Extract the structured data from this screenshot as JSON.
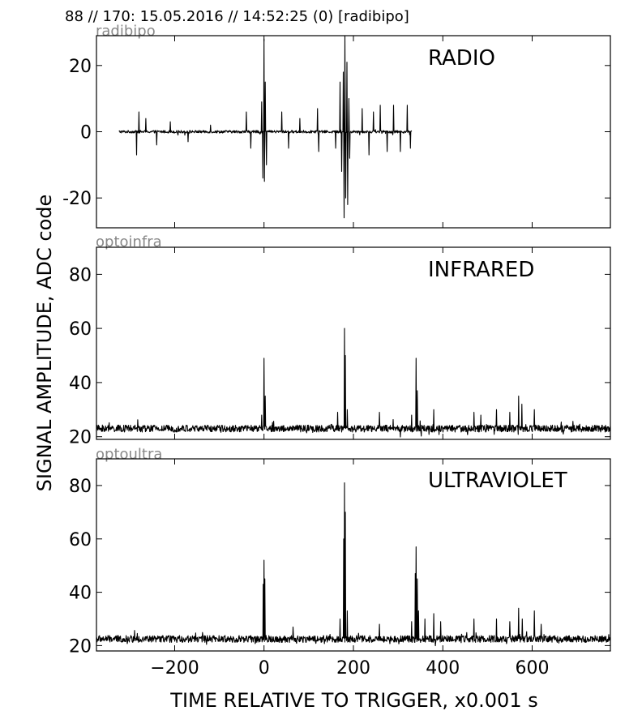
{
  "header": "88 // 170:   15.05.2016 // 14:52:25 (0)  [radibipo]",
  "xlabel": "TIME RELATIVE TO TRIGGER,   x0.001 s",
  "ylabel": "SIGNAL AMPLITUDE,  ADC code",
  "chart_data": [
    {
      "type": "line",
      "id": "radio",
      "tag": "radibipo",
      "title": "RADIO",
      "xlim": [
        -375,
        775
      ],
      "ylim": [
        -29,
        29
      ],
      "xticks": [
        -200,
        0,
        200,
        400,
        600
      ],
      "yticks": [
        -20,
        0,
        20
      ],
      "ytick_labels": [
        "-20",
        "0",
        "20"
      ],
      "x_range": [
        -325,
        330
      ],
      "baseline": 0,
      "noise": 0.4,
      "spikes": [
        {
          "x": -280,
          "y": 6
        },
        {
          "x": -285,
          "y": -7
        },
        {
          "x": -265,
          "y": 4
        },
        {
          "x": -240,
          "y": -4
        },
        {
          "x": -210,
          "y": 3
        },
        {
          "x": -170,
          "y": -3
        },
        {
          "x": -120,
          "y": 2
        },
        {
          "x": -40,
          "y": 6
        },
        {
          "x": -30,
          "y": -5
        },
        {
          "x": -5,
          "y": 9
        },
        {
          "x": -3,
          "y": -14
        },
        {
          "x": 0,
          "y": 28
        },
        {
          "x": 1,
          "y": -15
        },
        {
          "x": 3,
          "y": 15
        },
        {
          "x": 5,
          "y": -10
        },
        {
          "x": 40,
          "y": 6
        },
        {
          "x": 55,
          "y": -5
        },
        {
          "x": 80,
          "y": 4
        },
        {
          "x": 120,
          "y": 7
        },
        {
          "x": 122,
          "y": -6
        },
        {
          "x": 160,
          "y": -5
        },
        {
          "x": 170,
          "y": 15
        },
        {
          "x": 174,
          "y": -12
        },
        {
          "x": 177,
          "y": 18
        },
        {
          "x": 179,
          "y": -26
        },
        {
          "x": 181,
          "y": 29
        },
        {
          "x": 183,
          "y": -20
        },
        {
          "x": 185,
          "y": 21
        },
        {
          "x": 187,
          "y": -22
        },
        {
          "x": 190,
          "y": 10
        },
        {
          "x": 192,
          "y": -8
        },
        {
          "x": 220,
          "y": 7
        },
        {
          "x": 235,
          "y": -7
        },
        {
          "x": 245,
          "y": 6
        },
        {
          "x": 260,
          "y": 8
        },
        {
          "x": 275,
          "y": -6
        },
        {
          "x": 290,
          "y": 8
        },
        {
          "x": 305,
          "y": -6
        },
        {
          "x": 320,
          "y": 8
        },
        {
          "x": 328,
          "y": -5
        }
      ]
    },
    {
      "type": "line",
      "id": "infrared",
      "tag": "optoinfra",
      "title": "INFRARED",
      "xlim": [
        -375,
        775
      ],
      "ylim": [
        19,
        90
      ],
      "xticks": [
        -200,
        0,
        200,
        400,
        600
      ],
      "yticks": [
        20,
        40,
        60,
        80
      ],
      "ytick_labels": [
        "20",
        "40",
        "60",
        "80"
      ],
      "x_range": [
        -375,
        775
      ],
      "baseline": 23,
      "noise": 1.3,
      "spikes": [
        {
          "x": 0,
          "y": 49
        },
        {
          "x": -5,
          "y": 28
        },
        {
          "x": 3,
          "y": 35
        },
        {
          "x": 165,
          "y": 29
        },
        {
          "x": 180,
          "y": 60
        },
        {
          "x": 182,
          "y": 50
        },
        {
          "x": 186,
          "y": 30
        },
        {
          "x": 258,
          "y": 29
        },
        {
          "x": 330,
          "y": 28
        },
        {
          "x": 340,
          "y": 49
        },
        {
          "x": 343,
          "y": 37
        },
        {
          "x": 380,
          "y": 30
        },
        {
          "x": 470,
          "y": 29
        },
        {
          "x": 485,
          "y": 28
        },
        {
          "x": 520,
          "y": 30
        },
        {
          "x": 550,
          "y": 29
        },
        {
          "x": 570,
          "y": 35
        },
        {
          "x": 577,
          "y": 32
        },
        {
          "x": 605,
          "y": 30
        }
      ]
    },
    {
      "type": "line",
      "id": "ultraviolet",
      "tag": "optoultra",
      "title": "ULTRAVIOLET",
      "xlim": [
        -375,
        775
      ],
      "ylim": [
        18,
        90
      ],
      "xticks": [
        -200,
        0,
        200,
        400,
        600
      ],
      "xtick_labels": [
        "−200",
        "0",
        "200",
        "400",
        "600"
      ],
      "yticks": [
        20,
        40,
        60,
        80
      ],
      "ytick_labels": [
        "20",
        "40",
        "60",
        "80"
      ],
      "x_range": [
        -375,
        775
      ],
      "baseline": 22.5,
      "noise": 1.3,
      "spikes": [
        {
          "x": -2,
          "y": 43
        },
        {
          "x": 0,
          "y": 52
        },
        {
          "x": 2,
          "y": 45
        },
        {
          "x": 65,
          "y": 27
        },
        {
          "x": 170,
          "y": 30
        },
        {
          "x": 178,
          "y": 60
        },
        {
          "x": 180,
          "y": 81
        },
        {
          "x": 182,
          "y": 70
        },
        {
          "x": 186,
          "y": 33
        },
        {
          "x": 258,
          "y": 28
        },
        {
          "x": 330,
          "y": 29
        },
        {
          "x": 338,
          "y": 47
        },
        {
          "x": 340,
          "y": 57
        },
        {
          "x": 343,
          "y": 45
        },
        {
          "x": 346,
          "y": 33
        },
        {
          "x": 360,
          "y": 30
        },
        {
          "x": 380,
          "y": 32
        },
        {
          "x": 395,
          "y": 29
        },
        {
          "x": 470,
          "y": 30
        },
        {
          "x": 520,
          "y": 30
        },
        {
          "x": 550,
          "y": 29
        },
        {
          "x": 570,
          "y": 34
        },
        {
          "x": 578,
          "y": 30
        },
        {
          "x": 605,
          "y": 33
        },
        {
          "x": 620,
          "y": 28
        }
      ]
    }
  ]
}
